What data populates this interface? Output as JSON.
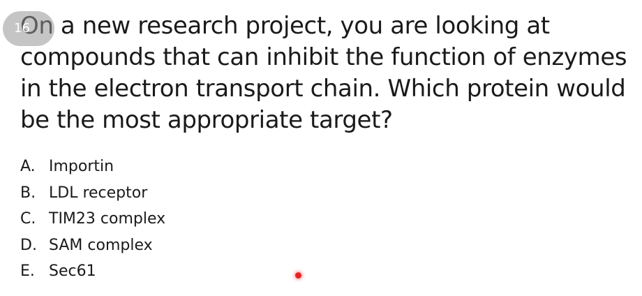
{
  "slide": {
    "badge_text": "16",
    "question": "On a new research project, you are looking at compounds that can inhibit the function of enzymes in the electron transport chain.  Which protein would be the most appropriate target?",
    "options": [
      {
        "letter": "A.",
        "text": "Importin"
      },
      {
        "letter": "B.",
        "text": "LDL receptor"
      },
      {
        "letter": "C.",
        "text": "TIM23 complex"
      },
      {
        "letter": "D.",
        "text": "SAM complex"
      },
      {
        "letter": "E.",
        "text": "Sec61"
      }
    ]
  },
  "colors": {
    "text": "#1a1a1a",
    "badge": "#969696",
    "pointer": "#e8231f"
  }
}
